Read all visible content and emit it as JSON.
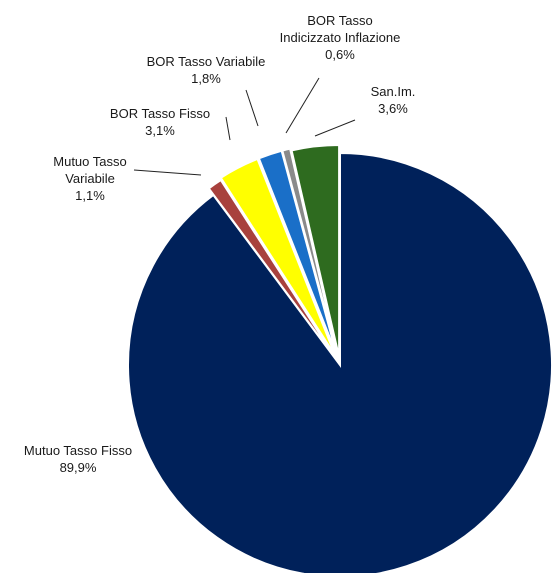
{
  "chart_data": {
    "type": "pie",
    "title": "",
    "slices": [
      {
        "label_lines": [
          "Mutuo Tasso Fisso"
        ],
        "value_label": "89,9%",
        "value": 89.9,
        "color": "#00215a"
      },
      {
        "label_lines": [
          "Mutuo Tasso",
          "Variabile"
        ],
        "value_label": "1,1%",
        "value": 1.1,
        "color": "#a8413d"
      },
      {
        "label_lines": [
          "BOR Tasso Fisso"
        ],
        "value_label": "3,1%",
        "value": 3.1,
        "color": "#ffff00"
      },
      {
        "label_lines": [
          "BOR Tasso Variabile"
        ],
        "value_label": "1,8%",
        "value": 1.8,
        "color": "#1a6fc8"
      },
      {
        "label_lines": [
          "BOR Tasso",
          "Indicizzato Inflazione"
        ],
        "value_label": "0,6%",
        "value": 0.6,
        "color": "#8a8a8a"
      },
      {
        "label_lines": [
          "San.Im."
        ],
        "value_label": "3,6%",
        "value": 3.6,
        "color": "#2e6b1f"
      }
    ],
    "legend": "none",
    "slice_style": "exploded"
  }
}
